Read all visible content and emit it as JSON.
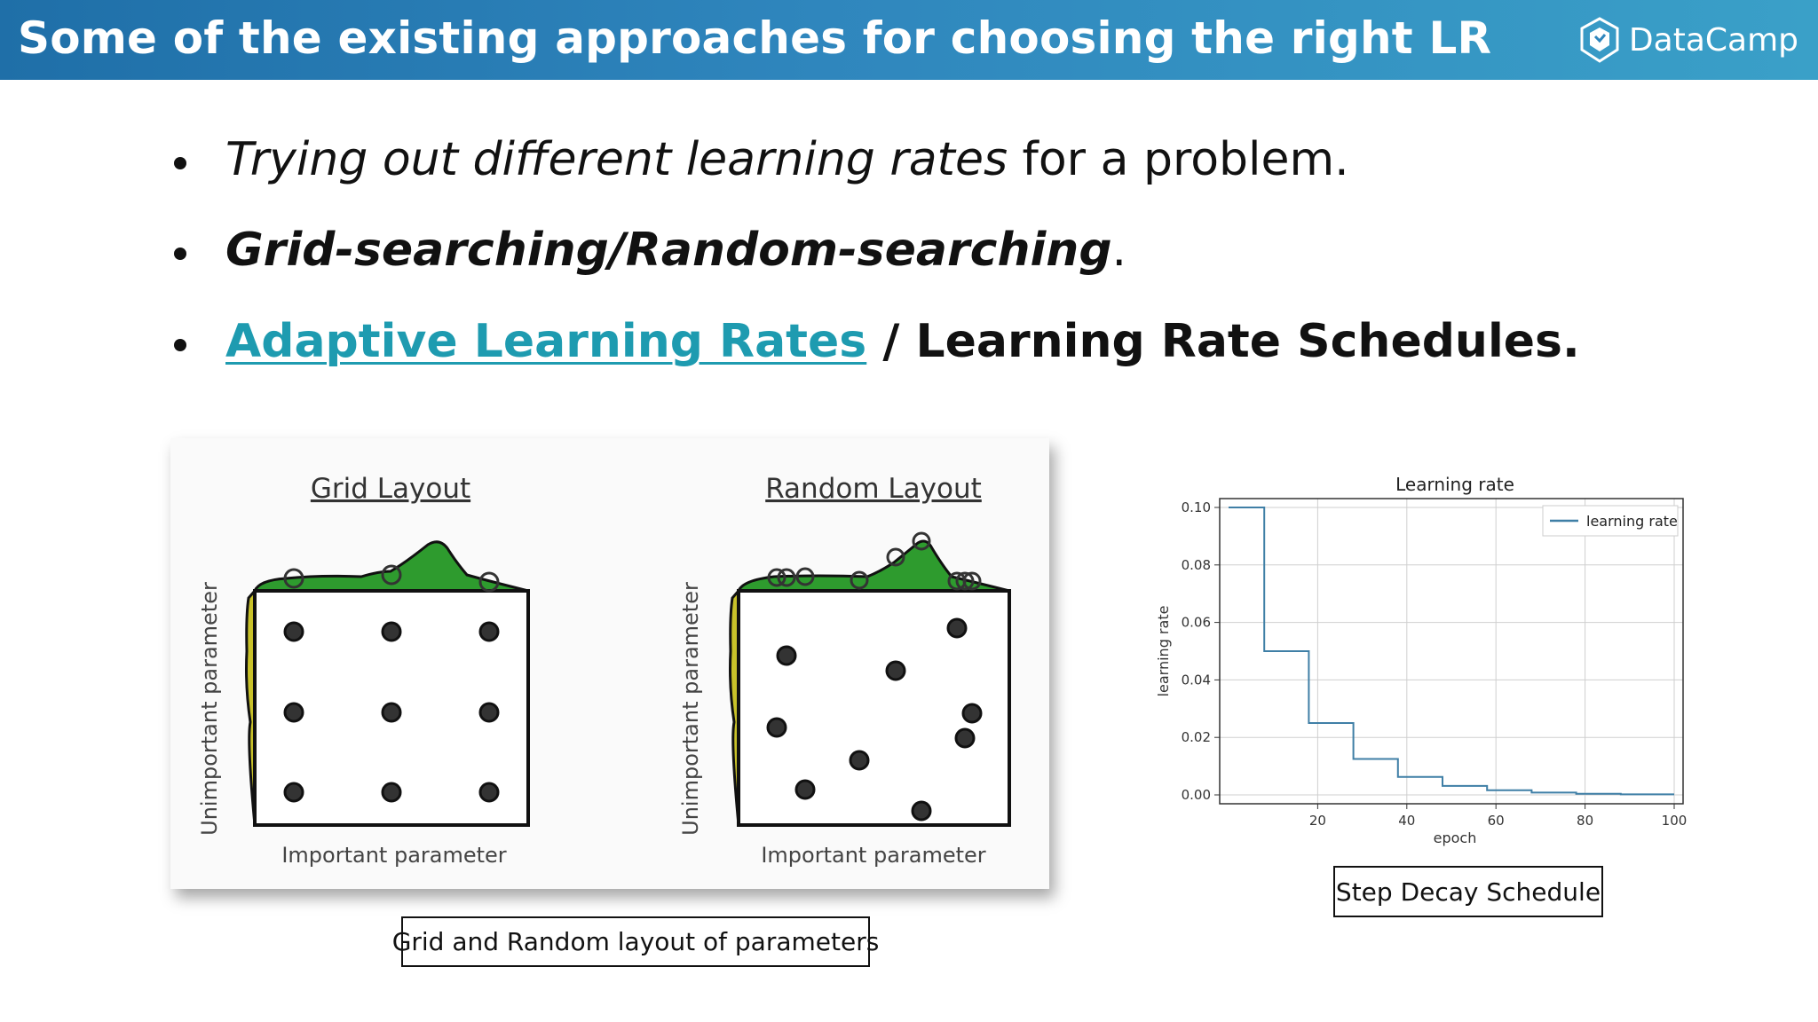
{
  "header": {
    "title": "Some of the existing approaches for choosing the right LR",
    "brand_name": "DataCamp",
    "brand_icon": "datacamp-logo-icon",
    "colors": {
      "gradient_start": "#1f6fa8",
      "gradient_end": "#3aa0c8"
    }
  },
  "bullets": [
    {
      "italic_part": "Trying out different learning rates",
      "rest": " for a problem."
    },
    {
      "bold_italic_part": "Grid-searching/Random-searching",
      "rest": "."
    },
    {
      "link_text": "Adaptive Learning Rates",
      "rest": " / Learning Rate Schedules.",
      "link_color": "#1e9bb0"
    }
  ],
  "layout_figure": {
    "grid_title": "Grid Layout",
    "random_title": "Random Layout",
    "y_label": "Unimportant parameter",
    "x_label": "Important parameter",
    "caption": "Grid and Random layout of parameters"
  },
  "chart_data": {
    "type": "line",
    "title": "Learning rate",
    "xlabel": "epoch",
    "ylabel": "learning rate",
    "xlim": [
      0,
      100
    ],
    "ylim": [
      0.0,
      0.1
    ],
    "x_ticks": [
      "20",
      "40",
      "60",
      "80",
      "100"
    ],
    "y_ticks": [
      "0.00",
      "0.02",
      "0.04",
      "0.06",
      "0.08",
      "0.10"
    ],
    "x_tick_values": [
      20,
      40,
      60,
      80,
      100
    ],
    "y_tick_values": [
      0.0,
      0.02,
      0.04,
      0.06,
      0.08,
      0.1
    ],
    "grid": true,
    "legend": "top-right",
    "series": [
      {
        "name": "learning rate",
        "color": "#3f7fa6",
        "x": [
          0,
          8,
          8,
          18,
          18,
          28,
          28,
          38,
          38,
          48,
          48,
          58,
          58,
          68,
          68,
          78,
          78,
          88,
          88,
          100
        ],
        "y": [
          0.1,
          0.1,
          0.05,
          0.05,
          0.025,
          0.025,
          0.0125,
          0.0125,
          0.00625,
          0.00625,
          0.003125,
          0.003125,
          0.0016,
          0.0016,
          0.0008,
          0.0008,
          0.0004,
          0.0004,
          0.0002,
          0.0002
        ]
      }
    ],
    "caption": "Step Decay Schedule"
  }
}
